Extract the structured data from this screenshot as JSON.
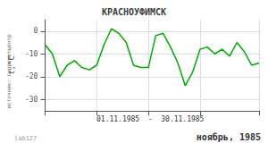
{
  "chart_data": {
    "type": "line",
    "title": "КРАСНОУФИМСК",
    "ylabel": "t,°C",
    "x": [
      1,
      2,
      3,
      4,
      5,
      6,
      7,
      8,
      9,
      10,
      11,
      12,
      13,
      14,
      15,
      16,
      17,
      18,
      19,
      20,
      21,
      22,
      23,
      24,
      25,
      26,
      27,
      28,
      29,
      30
    ],
    "values": [
      -6,
      -10,
      -20,
      -15,
      -13,
      -16,
      -17,
      -15,
      -6,
      1,
      -1,
      -5,
      -15,
      -16,
      -16,
      -2,
      -1,
      -7,
      -14,
      -24,
      -18,
      -8,
      -7,
      -10,
      -8,
      -11,
      -5,
      -9,
      -15,
      -14
    ],
    "color": "#00aa00",
    "xlim": [
      1,
      30
    ],
    "xticks": [
      1,
      8,
      15,
      22,
      30
    ],
    "ylim": [
      -35,
      5
    ],
    "yticks": [
      0,
      -10,
      -20,
      -30
    ],
    "grid": true,
    "tick_labels": "y",
    "annotations": [
      "01.11.1985  -  30.11.1985",
      "источник: гидрометцентр",
      "ноябрь, 1985",
      "lab127"
    ]
  }
}
